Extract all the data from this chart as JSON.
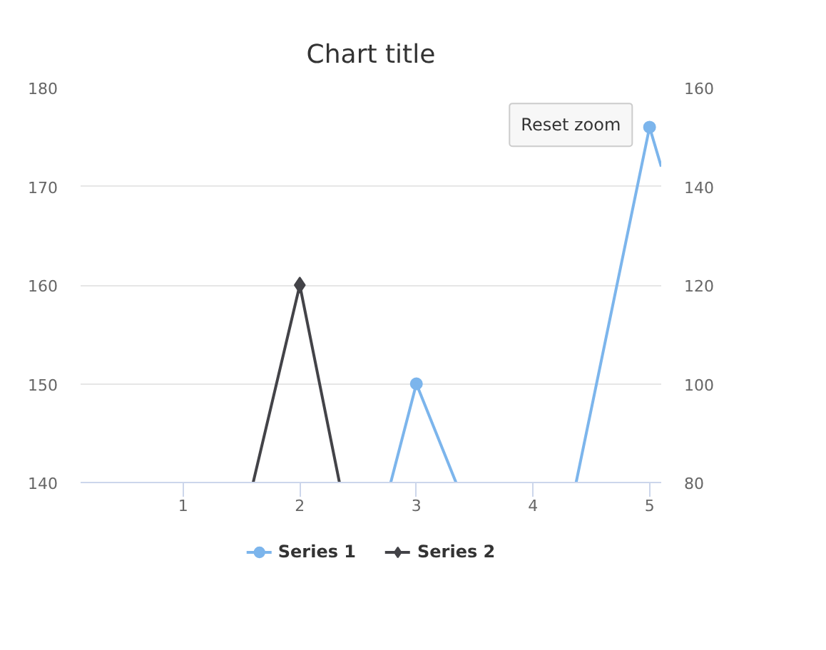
{
  "chart_data": {
    "type": "line",
    "title": "Chart title",
    "xlim": [
      0.12,
      5.1
    ],
    "xticks": [
      1,
      2,
      3,
      4,
      5
    ],
    "ylim": [
      140,
      180
    ],
    "yticks": [
      140,
      150,
      160,
      170,
      180
    ],
    "y2lim": [
      80,
      160
    ],
    "y2ticks": [
      80,
      100,
      120,
      140,
      160
    ],
    "grid": "y",
    "legend": "bottom",
    "line_style": "solid",
    "series": [
      {
        "name": "Series 1",
        "type": "scatter",
        "color": "#7cb5ec",
        "marker": "circle",
        "x": [
          3,
          5
        ],
        "values": [
          150,
          176
        ]
      },
      {
        "name": "Series 2",
        "type": "scatter",
        "color": "#434348",
        "marker": "diamond",
        "x": [
          2
        ],
        "values": [
          160
        ]
      },
      {
        "color": "#7cb5ec",
        "marker": "none",
        "x": [
          2.78,
          3,
          3.34
        ],
        "values": [
          140,
          150,
          140
        ]
      },
      {
        "color": "#7cb5ec",
        "marker": "none",
        "x": [
          4.37,
          5,
          5.1
        ],
        "values": [
          140,
          176,
          172
        ]
      },
      {
        "color": "#434348",
        "marker": "none",
        "x": [
          1.6,
          2,
          2.34
        ],
        "values": [
          140,
          160,
          140
        ]
      }
    ],
    "annotations": [
      "Reset zoom"
    ]
  }
}
